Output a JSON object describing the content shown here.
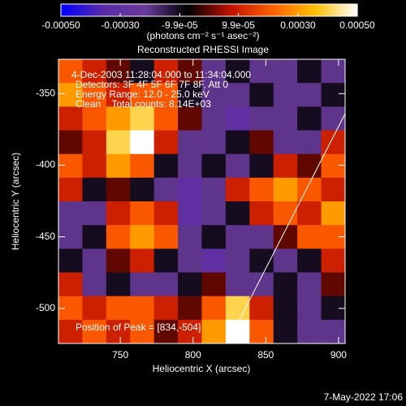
{
  "chart_data": {
    "type": "heatmap",
    "title": "Reconstructed RHESSI Image",
    "xlabel": "Heliocentric X (arcsec)",
    "ylabel": "Heliocentric Y (arcsec)",
    "annotations": [
      "4-Dec-2003 11:28:04.000 to 11:34:04.000",
      "Detectors: 3F 4F 5F 6F 7F 8F, Att 0",
      "Energy Range: 12.0 - 25.0 keV",
      "Clean    Total counts: 8.14E+03"
    ],
    "peak_label": "Position of Peak = [834,-504]",
    "timestamp": "7-May-2022 17:06",
    "colorbar_label": "(photons cm⁻² s⁻¹ asec⁻²)",
    "clim": [
      -0.0005,
      0.0005
    ],
    "cticks": [
      {
        "value": -0.0005,
        "label": "-0.00050"
      },
      {
        "value": -0.0003,
        "label": "-0.00030"
      },
      {
        "value": -9.9e-05,
        "label": "-9.9e-05"
      },
      {
        "value": 9.9e-05,
        "label": "9.9e-05"
      },
      {
        "value": 0.0003,
        "label": "0.00030"
      },
      {
        "value": 0.0005,
        "label": "0.00050"
      }
    ],
    "colormap": [
      "#0000ff",
      "#5a2aa8",
      "#6a3a9a",
      "#000000",
      "#c01000",
      "#ff6000",
      "#ffc000",
      "#ffffff"
    ],
    "xlim": [
      707.5,
      904.5
    ],
    "ylim": [
      -524.5,
      -326
    ],
    "xticks": [
      750,
      800,
      850,
      900
    ],
    "yticks": [
      -350,
      -400,
      -450,
      -500
    ],
    "z": [
      [
        0.0002,
        0.0001,
        0,
        -0.0001,
        0.0001,
        0,
        -0.0002,
        -0.0001,
        -0.0002,
        -0.0002,
        -0.0001,
        -0.0002
      ],
      [
        0.0003,
        0.0002,
        0.0001,
        0.0002,
        0.0002,
        -0.0001,
        -0.0002,
        -0.0002,
        -0.0001,
        -0.0002,
        -0.0002,
        -0.0001
      ],
      [
        0.0001,
        0.0002,
        0.0003,
        0.0004,
        0.0002,
        0,
        -0.0002,
        -0.0003,
        -0.0002,
        -0.0002,
        -0.0001,
        -0.0002
      ],
      [
        0,
        0.0001,
        0.0004,
        0.0005,
        0.0001,
        -0.0002,
        -0.0002,
        -0.0001,
        0,
        -0.0002,
        -0.0002,
        0.0001
      ],
      [
        0.0002,
        0.0001,
        0.0003,
        0.0002,
        -0.0001,
        -0.0002,
        -0.0001,
        -0.0002,
        -0.0001,
        0.0001,
        0,
        0.0002
      ],
      [
        0.0001,
        -0.0001,
        0,
        -0.0001,
        -0.0002,
        -0.0003,
        -0.0002,
        0.0001,
        0.0002,
        0.0003,
        0.0002,
        0.0001
      ],
      [
        -0.0002,
        -0.0002,
        0.0001,
        0.0002,
        0.0001,
        -0.0003,
        -0.0002,
        -0.0001,
        0.0001,
        0.0002,
        0.0001,
        0.0003
      ],
      [
        -0.0002,
        -0.0001,
        0.0002,
        0.0003,
        0.0002,
        -0.0002,
        -0.0001,
        -0.0002,
        -0.0002,
        0,
        0.0002,
        0.0002
      ],
      [
        -0.0001,
        -0.0002,
        0,
        0.0001,
        -0.0001,
        -0.0002,
        -0.0003,
        -0.0002,
        -0.0001,
        -0.0002,
        -0.0001,
        0.0001
      ],
      [
        0.0001,
        -0.0002,
        -0.0001,
        -0.0002,
        -0.0002,
        -0.0001,
        0,
        -0.0002,
        -0.0002,
        -0.0001,
        -0.0002,
        0
      ],
      [
        0.0002,
        0.0001,
        0.0002,
        0.0002,
        0.0001,
        0,
        0.0002,
        0.0004,
        0.0001,
        -0.0001,
        -0.0002,
        -0.0001
      ],
      [
        0.0001,
        0.0002,
        0.0001,
        0.0002,
        0,
        0.0001,
        0.0003,
        0.0005,
        0.0002,
        -0.0001,
        -0.0002,
        -0.0002
      ]
    ]
  }
}
